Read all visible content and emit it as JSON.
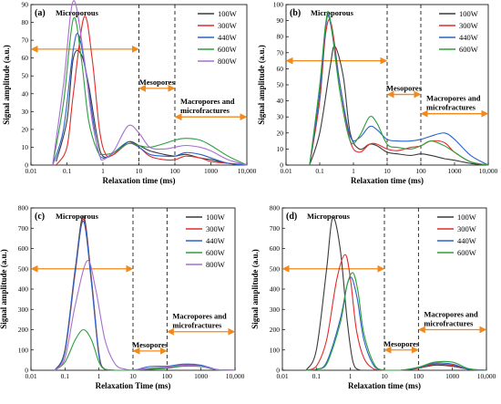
{
  "chart_data": [
    {
      "type": "line",
      "panel_label": "(a)",
      "xlabel": "Relaxation time (ms)",
      "ylabel": "Signal amplitude (a.u.)",
      "xscale": "log",
      "xlim": [
        0.01,
        10000
      ],
      "ylim": [
        0,
        90
      ],
      "xticks": [
        "0.01",
        "0.1",
        "1",
        "10",
        "100",
        "1000",
        "10,000"
      ],
      "yticks": [
        0,
        10,
        20,
        30,
        40,
        50,
        60,
        70,
        80,
        90
      ],
      "annotations": [
        "Microporous",
        "Mesopores",
        "Macropores and microfractures"
      ],
      "boundaries_x": [
        10,
        100
      ],
      "legend_position": "top-right",
      "series": [
        {
          "name": "100W",
          "color": "#3a3a3a",
          "x": [
            0.05,
            0.1,
            0.15,
            0.25,
            0.4,
            0.7,
            1,
            2,
            5,
            10,
            20,
            50,
            100,
            200,
            500,
            1000,
            3000,
            10000
          ],
          "y": [
            2,
            25,
            60,
            62,
            45,
            15,
            5,
            6,
            13,
            11,
            8,
            6,
            5,
            6,
            4,
            3,
            1,
            0
          ]
        },
        {
          "name": "300W",
          "color": "#e32b2b",
          "x": [
            0.05,
            0.1,
            0.15,
            0.3,
            0.5,
            0.8,
            1.2,
            2,
            5,
            10,
            20,
            50,
            100,
            200,
            500,
            1000,
            3000,
            10000
          ],
          "y": [
            0,
            10,
            40,
            83,
            60,
            20,
            6,
            6,
            12,
            10,
            5,
            3,
            3,
            5,
            4,
            2,
            1,
            0
          ]
        },
        {
          "name": "440W",
          "color": "#2a63c9",
          "x": [
            0.04,
            0.08,
            0.15,
            0.22,
            0.4,
            0.7,
            1,
            2,
            5,
            10,
            20,
            50,
            100,
            200,
            500,
            1000,
            3000,
            10000
          ],
          "y": [
            0,
            20,
            65,
            72,
            42,
            10,
            4,
            7,
            13,
            10,
            6,
            5,
            5,
            7,
            6,
            4,
            1,
            0
          ]
        },
        {
          "name": "600W",
          "color": "#2e9e3e",
          "x": [
            0.04,
            0.08,
            0.15,
            0.25,
            0.4,
            0.7,
            1,
            2,
            5,
            10,
            20,
            50,
            100,
            200,
            500,
            1000,
            3000,
            10000
          ],
          "y": [
            0,
            35,
            82,
            60,
            25,
            8,
            6,
            7,
            12,
            11,
            10,
            12,
            14,
            15,
            14,
            11,
            5,
            0
          ]
        },
        {
          "name": "800W",
          "color": "#a66fd1",
          "x": [
            0.04,
            0.08,
            0.15,
            0.3,
            0.5,
            0.8,
            1,
            2,
            5,
            10,
            20,
            50,
            100,
            200,
            500,
            1000,
            3000,
            10000
          ],
          "y": [
            0,
            45,
            92,
            60,
            25,
            6,
            3,
            8,
            22,
            18,
            10,
            9,
            10,
            11,
            10,
            8,
            3,
            0
          ]
        }
      ]
    },
    {
      "type": "line",
      "panel_label": "(b)",
      "xlabel": "Relaxation time (ms)",
      "ylabel": "Signal amplitude (a.u.)",
      "xscale": "log",
      "xlim": [
        0.01,
        10000
      ],
      "ylim": [
        0,
        100
      ],
      "xticks": [
        "0.01",
        "0.1",
        "1",
        "10",
        "100",
        "1000",
        "10,000"
      ],
      "yticks": [
        0,
        10,
        20,
        30,
        40,
        50,
        60,
        70,
        80,
        90,
        100
      ],
      "annotations": [
        "Microporous",
        "Mesopores",
        "Macropores and microfractures"
      ],
      "boundaries_x": [
        10,
        100
      ],
      "legend_position": "top-right",
      "series": [
        {
          "name": "100W",
          "color": "#3a3a3a",
          "x": [
            0.05,
            0.1,
            0.2,
            0.28,
            0.5,
            0.8,
            1.5,
            3,
            5,
            10,
            20,
            50,
            100,
            200,
            500,
            1000,
            3000,
            10000
          ],
          "y": [
            0,
            20,
            60,
            74,
            55,
            20,
            10,
            13,
            12,
            8,
            7,
            6,
            7,
            6,
            4,
            3,
            1,
            0
          ]
        },
        {
          "name": "300W",
          "color": "#e32b2b",
          "x": [
            0.05,
            0.1,
            0.15,
            0.22,
            0.4,
            0.8,
            1.5,
            3,
            5,
            10,
            20,
            50,
            100,
            200,
            500,
            1000,
            3000,
            10000
          ],
          "y": [
            0,
            40,
            82,
            88,
            50,
            15,
            8,
            13,
            13,
            10,
            9,
            11,
            12,
            15,
            14,
            8,
            2,
            0
          ]
        },
        {
          "name": "440W",
          "color": "#2a63c9",
          "x": [
            0.05,
            0.1,
            0.15,
            0.2,
            0.4,
            0.8,
            1.5,
            3,
            5,
            10,
            20,
            50,
            100,
            200,
            500,
            1000,
            3000,
            10000
          ],
          "y": [
            0,
            45,
            86,
            90,
            50,
            18,
            17,
            24,
            22,
            16,
            15,
            15,
            16,
            18,
            20,
            16,
            6,
            0
          ]
        },
        {
          "name": "600W",
          "color": "#2e9e3e",
          "x": [
            0.05,
            0.1,
            0.15,
            0.2,
            0.4,
            0.8,
            1.5,
            3,
            5,
            10,
            20,
            50,
            100,
            200,
            500,
            1000,
            3000,
            10000
          ],
          "y": [
            0,
            50,
            88,
            92,
            45,
            15,
            18,
            30,
            26,
            13,
            11,
            10,
            12,
            15,
            12,
            8,
            2,
            0
          ]
        }
      ]
    },
    {
      "type": "line",
      "panel_label": "(c)",
      "xlabel": "Relaxation Time (ms)",
      "ylabel": "Signal amplitude (a.u.)",
      "xscale": "log",
      "xlim": [
        0.01,
        10000
      ],
      "ylim": [
        0,
        800
      ],
      "xticks": [
        "0.01",
        "0.1",
        "1",
        "10",
        "100",
        "1000",
        "10,000"
      ],
      "yticks": [
        0,
        100,
        200,
        300,
        400,
        500,
        600,
        700,
        800
      ],
      "annotations": [
        "Microporous",
        "Mesopores",
        "Macropores and microfractures"
      ],
      "boundaries_x": [
        10,
        100
      ],
      "legend_position": "top-right",
      "series": [
        {
          "name": "100W",
          "color": "#3a3a3a",
          "x": [
            0.05,
            0.1,
            0.2,
            0.35,
            0.6,
            1,
            1.5,
            3,
            10,
            30,
            100,
            300,
            1000,
            3000,
            10000
          ],
          "y": [
            0,
            100,
            500,
            760,
            450,
            80,
            5,
            0,
            0,
            5,
            10,
            25,
            20,
            2,
            0
          ]
        },
        {
          "name": "300W",
          "color": "#e32b2b",
          "x": [
            0.05,
            0.1,
            0.2,
            0.35,
            0.6,
            1,
            1.5,
            3,
            10,
            30,
            100,
            300,
            1000,
            3000,
            10000
          ],
          "y": [
            0,
            90,
            480,
            745,
            440,
            75,
            5,
            0,
            0,
            8,
            12,
            28,
            22,
            3,
            0
          ]
        },
        {
          "name": "440W",
          "color": "#2a63c9",
          "x": [
            0.05,
            0.1,
            0.2,
            0.35,
            0.6,
            1,
            1.5,
            3,
            10,
            30,
            100,
            300,
            1000,
            3000,
            10000
          ],
          "y": [
            0,
            95,
            490,
            735,
            430,
            70,
            5,
            0,
            0,
            18,
            20,
            30,
            25,
            3,
            0
          ]
        },
        {
          "name": "600W",
          "color": "#2e9e3e",
          "x": [
            0.05,
            0.1,
            0.2,
            0.35,
            0.6,
            1,
            1.5,
            3,
            10,
            30,
            100,
            300,
            1000,
            3000,
            10000
          ],
          "y": [
            0,
            40,
            150,
            200,
            150,
            40,
            5,
            0,
            0,
            5,
            10,
            20,
            18,
            2,
            0
          ]
        },
        {
          "name": "800W",
          "color": "#a66fd1",
          "x": [
            0.05,
            0.1,
            0.2,
            0.45,
            0.8,
            1.5,
            3,
            6,
            10,
            30,
            100,
            300,
            1000,
            3000,
            10000
          ],
          "y": [
            0,
            60,
            320,
            540,
            400,
            150,
            30,
            5,
            2,
            10,
            15,
            25,
            20,
            3,
            0
          ]
        }
      ]
    },
    {
      "type": "line",
      "panel_label": "(d)",
      "xlabel": "Relaxation time (ms)",
      "ylabel": "Signal amplitude (a.u.)",
      "xscale": "log",
      "xlim": [
        0.01,
        10000
      ],
      "ylim": [
        0,
        800
      ],
      "xticks": [
        "0.01",
        "0.1",
        "1",
        "10",
        "100",
        "1000",
        "10,000"
      ],
      "yticks": [
        0,
        100,
        200,
        300,
        400,
        500,
        600,
        700,
        800
      ],
      "annotations": [
        "Microporous",
        "Mesopores",
        "Macropores and microfractures"
      ],
      "boundaries_x": [
        10,
        100
      ],
      "legend_position": "top-right",
      "series": [
        {
          "name": "100W",
          "color": "#3a3a3a",
          "x": [
            0.05,
            0.1,
            0.2,
            0.3,
            0.5,
            0.8,
            1.2,
            2,
            5,
            10,
            30,
            100,
            300,
            1000,
            3000,
            10000
          ],
          "y": [
            0,
            100,
            500,
            750,
            600,
            250,
            40,
            0,
            0,
            0,
            0,
            10,
            25,
            20,
            5,
            0
          ]
        },
        {
          "name": "300W",
          "color": "#e32b2b",
          "x": [
            0.05,
            0.1,
            0.2,
            0.4,
            0.7,
            1,
            1.5,
            2.5,
            5,
            10,
            30,
            100,
            300,
            1000,
            3000,
            10000
          ],
          "y": [
            0,
            20,
            150,
            450,
            570,
            450,
            200,
            60,
            5,
            0,
            0,
            10,
            30,
            25,
            5,
            0
          ]
        },
        {
          "name": "440W",
          "color": "#2a63c9",
          "x": [
            0.05,
            0.1,
            0.2,
            0.5,
            0.8,
            1.1,
            1.6,
            2.5,
            5,
            10,
            30,
            100,
            300,
            1000,
            3000,
            10000
          ],
          "y": [
            0,
            5,
            40,
            250,
            420,
            455,
            350,
            150,
            20,
            0,
            0,
            12,
            35,
            30,
            5,
            0
          ]
        },
        {
          "name": "600W",
          "color": "#2e9e3e",
          "x": [
            0.05,
            0.1,
            0.2,
            0.5,
            0.8,
            1.2,
            1.7,
            2.5,
            5,
            10,
            30,
            100,
            300,
            1000,
            3000,
            10000
          ],
          "y": [
            0,
            5,
            30,
            230,
            420,
            480,
            380,
            180,
            30,
            0,
            0,
            15,
            40,
            40,
            8,
            0
          ]
        }
      ]
    }
  ]
}
